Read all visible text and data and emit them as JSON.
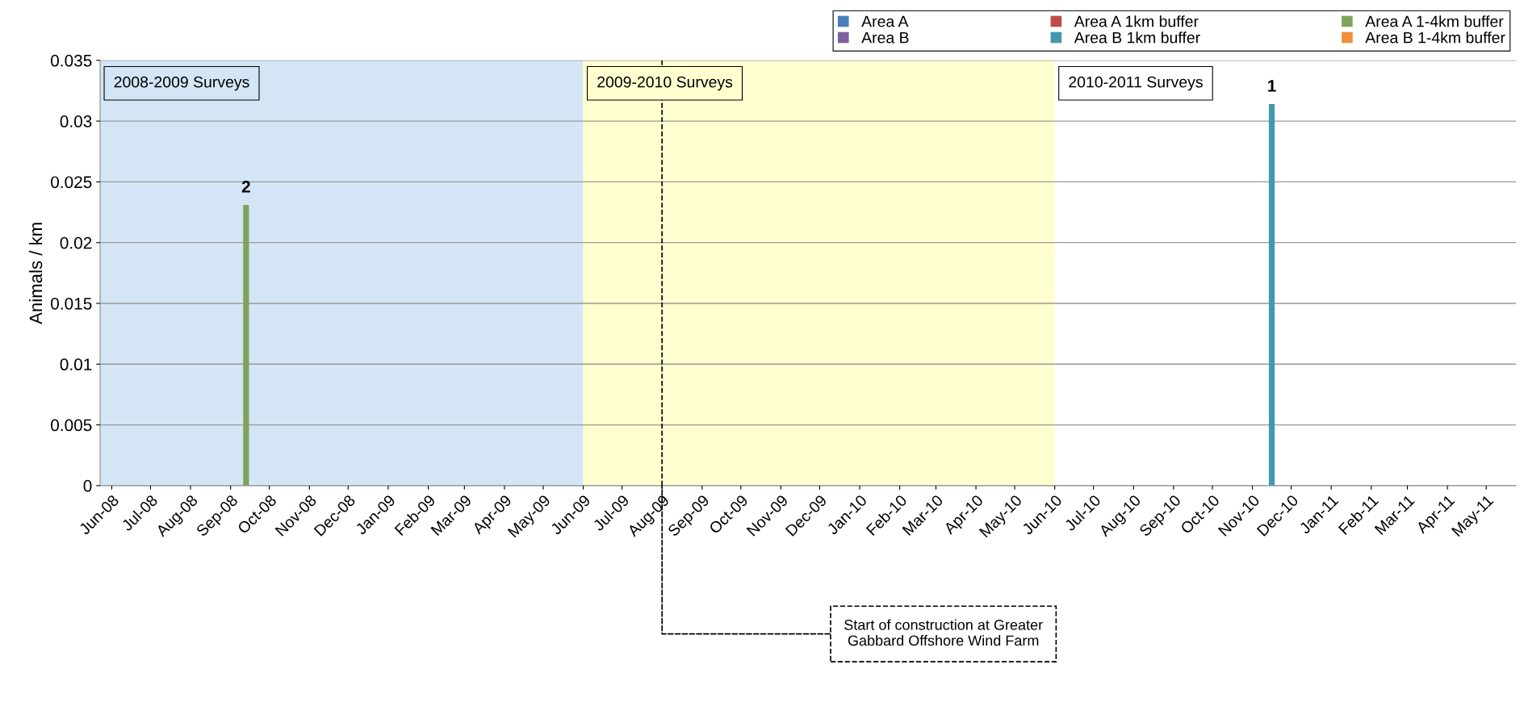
{
  "chart_data": {
    "type": "bar",
    "ylabel": "Animals / km",
    "xlim": [
      "2008-05-23",
      "2011-05-24"
    ],
    "ylim": [
      0,
      0.035
    ],
    "yticks": [
      0,
      0.005,
      0.01,
      0.015,
      0.02,
      0.025,
      0.03,
      0.035
    ],
    "xticks": [
      {
        "value": "2008-06-01",
        "label": "Jun-08"
      },
      {
        "value": "2008-07-01",
        "label": "Jul-08"
      },
      {
        "value": "2008-08-01",
        "label": "Aug-08"
      },
      {
        "value": "2008-09-01",
        "label": "Sep-08"
      },
      {
        "value": "2008-10-01",
        "label": "Oct-08"
      },
      {
        "value": "2008-11-01",
        "label": "Nov-08"
      },
      {
        "value": "2008-12-01",
        "label": "Dec-08"
      },
      {
        "value": "2009-01-01",
        "label": "Jan-09"
      },
      {
        "value": "2009-02-01",
        "label": "Feb-09"
      },
      {
        "value": "2009-03-01",
        "label": "Mar-09"
      },
      {
        "value": "2009-04-01",
        "label": "Apr-09"
      },
      {
        "value": "2009-05-01",
        "label": "May-09"
      },
      {
        "value": "2009-06-01",
        "label": "Jun-09"
      },
      {
        "value": "2009-07-01",
        "label": "Jul-09"
      },
      {
        "value": "2009-08-01",
        "label": "Aug-09"
      },
      {
        "value": "2009-09-01",
        "label": "Sep-09"
      },
      {
        "value": "2009-10-01",
        "label": "Oct-09"
      },
      {
        "value": "2009-11-01",
        "label": "Nov-09"
      },
      {
        "value": "2009-12-01",
        "label": "Dec-09"
      },
      {
        "value": "2010-01-01",
        "label": "Jan-10"
      },
      {
        "value": "2010-02-01",
        "label": "Feb-10"
      },
      {
        "value": "2010-03-01",
        "label": "Mar-10"
      },
      {
        "value": "2010-04-01",
        "label": "Apr-10"
      },
      {
        "value": "2010-05-01",
        "label": "May-10"
      },
      {
        "value": "2010-06-01",
        "label": "Jun-10"
      },
      {
        "value": "2010-07-01",
        "label": "Jul-10"
      },
      {
        "value": "2010-08-01",
        "label": "Aug-10"
      },
      {
        "value": "2010-09-01",
        "label": "Sep-10"
      },
      {
        "value": "2010-10-01",
        "label": "Oct-10"
      },
      {
        "value": "2010-11-01",
        "label": "Nov-10"
      },
      {
        "value": "2010-12-01",
        "label": "Dec-10"
      },
      {
        "value": "2011-01-01",
        "label": "Jan-11"
      },
      {
        "value": "2011-02-01",
        "label": "Feb-11"
      },
      {
        "value": "2011-03-01",
        "label": "Mar-11"
      },
      {
        "value": "2011-04-01",
        "label": "Apr-11"
      },
      {
        "value": "2011-05-01",
        "label": "May-11"
      }
    ],
    "series": [
      {
        "name": "Area A",
        "color": "#4a7ebb"
      },
      {
        "name": "Area A 1km buffer",
        "color": "#be4b48"
      },
      {
        "name": "Area A 1-4km buffer",
        "color": "#7fa35a",
        "x": [
          "2008-09-13"
        ],
        "values": [
          0.0231
        ]
      },
      {
        "name": "Area B",
        "color": "#7d60a0"
      },
      {
        "name": "Area B 1km buffer",
        "color": "#4198af",
        "x": [
          "2010-11-16"
        ],
        "values": [
          0.0314
        ]
      },
      {
        "name": "Area B 1-4km buffer",
        "color": "#f08f3c"
      }
    ],
    "annotations": [
      {
        "text": "2",
        "x": "2008-09-13",
        "y": 0.0231
      },
      {
        "text": "1",
        "x": "2010-11-16",
        "y": 0.0314
      }
    ],
    "bands": [
      {
        "axis": "x",
        "from": "2008-05-23",
        "to": "2009-06-01",
        "label": "2008-2009 Surveys",
        "color": "#d4e6f5"
      },
      {
        "axis": "x",
        "from": "2009-06-01",
        "to": "2010-06-01",
        "label": "2009-2010 Surveys",
        "color": "#ffffd0"
      },
      {
        "axis": "x",
        "from": "2010-06-01",
        "to": "2011-05-24",
        "label": "2010-2011 Surveys",
        "color": "#ffffff"
      }
    ],
    "ref_lines": [
      {
        "axis": "x",
        "value": "2009-08-01",
        "label": "Start of construction at Greater\nGabbard Offshore Wind Farm",
        "color": "#000000",
        "line_style": "dashed"
      }
    ],
    "grid": "y",
    "legend": "top right"
  }
}
